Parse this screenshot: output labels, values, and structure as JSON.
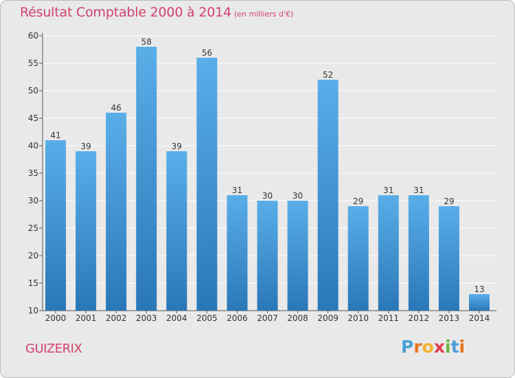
{
  "header": {
    "title": "Résultat Comptable 2000 à 2014",
    "subtitle": "(en milliers d'€)"
  },
  "footer": {
    "commune": "GUIZERIX",
    "logo_letters": [
      "P",
      "r",
      "o",
      "x",
      "i",
      "t",
      "i"
    ]
  },
  "colors": {
    "accent": "#d2416b",
    "bar_top": "#5aaee8",
    "bar_bottom": "#2a77b8",
    "background": "#e9e9e9"
  },
  "chart_data": {
    "type": "bar",
    "title": "Résultat Comptable 2000 à 2014",
    "xlabel": "",
    "ylabel": "",
    "ylim": [
      10,
      60
    ],
    "yticks": [
      10,
      15,
      20,
      25,
      30,
      35,
      40,
      45,
      50,
      55,
      60
    ],
    "categories": [
      "2000",
      "2001",
      "2002",
      "2003",
      "2004",
      "2005",
      "2006",
      "2007",
      "2008",
      "2009",
      "2010",
      "2011",
      "2012",
      "2013",
      "2014"
    ],
    "values": [
      41,
      39,
      46,
      58,
      39,
      56,
      31,
      30,
      30,
      52,
      29,
      31,
      31,
      29,
      13
    ],
    "grid": true
  }
}
